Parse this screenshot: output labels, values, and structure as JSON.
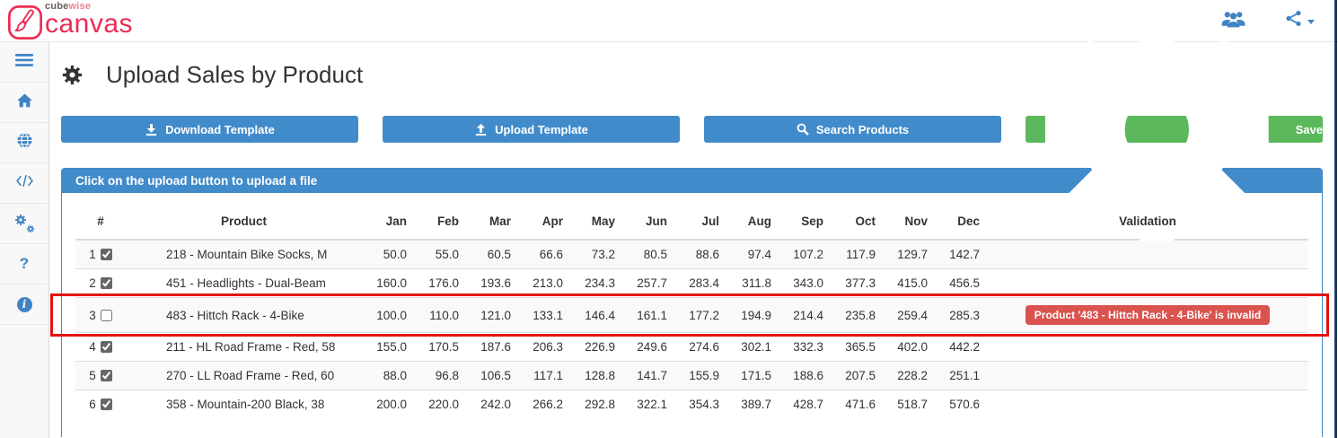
{
  "brand": {
    "cube": "cube",
    "wise": "wise",
    "name": "canvas",
    "icon": "paintbrush-logo-icon",
    "accent_color": "#ed2b55"
  },
  "topbar": {
    "icons": [
      {
        "icon": "users-icon"
      },
      {
        "icon": "share-icon"
      }
    ],
    "icon_color": "#3f83c3"
  },
  "sidebar": {
    "items": [
      {
        "icon": "menu-icon"
      },
      {
        "icon": "home-icon"
      },
      {
        "icon": "globe-icon"
      },
      {
        "icon": "code-icon"
      },
      {
        "icon": "cogs-icon"
      },
      {
        "icon": "help-icon"
      },
      {
        "icon": "info-icon"
      }
    ]
  },
  "header": {
    "title": "Upload Sales by Product",
    "icon": "gear-icon"
  },
  "toolbar": {
    "buttons": [
      {
        "id": "download-template",
        "label": "Download Template",
        "icon": "download-icon",
        "style": "primary"
      },
      {
        "id": "upload-template",
        "label": "Upload Template",
        "icon": "upload-icon",
        "style": "primary"
      },
      {
        "id": "search-products",
        "label": "Search Products",
        "icon": "search-icon",
        "style": "primary"
      },
      {
        "id": "save",
        "label": "Save",
        "icon": "gear-icon",
        "style": "success"
      }
    ],
    "primary_color": "#428bca",
    "success_color": "#5cb85c"
  },
  "panel": {
    "heading": "Click on the upload button to upload a file",
    "accent_color": "#428bca"
  },
  "table": {
    "columns": {
      "num": "#",
      "product": "Product",
      "validation": "Validation"
    },
    "months": [
      "Jan",
      "Feb",
      "Mar",
      "Apr",
      "May",
      "Jun",
      "Jul",
      "Aug",
      "Sep",
      "Oct",
      "Nov",
      "Dec"
    ],
    "rows": [
      {
        "num": "1",
        "checked": true,
        "product": "218 - Mountain Bike Socks, M",
        "values": [
          "50.0",
          "55.0",
          "60.5",
          "66.6",
          "73.2",
          "80.5",
          "88.6",
          "97.4",
          "107.2",
          "117.9",
          "129.7",
          "142.7"
        ],
        "validation": "",
        "highlighted": false
      },
      {
        "num": "2",
        "checked": true,
        "product": "451 - Headlights - Dual-Beam",
        "values": [
          "160.0",
          "176.0",
          "193.6",
          "213.0",
          "234.3",
          "257.7",
          "283.4",
          "311.8",
          "343.0",
          "377.3",
          "415.0",
          "456.5"
        ],
        "validation": "",
        "highlighted": false
      },
      {
        "num": "3",
        "checked": false,
        "product": "483 - Hittch Rack - 4-Bike",
        "values": [
          "100.0",
          "110.0",
          "121.0",
          "133.1",
          "146.4",
          "161.1",
          "177.2",
          "194.9",
          "214.4",
          "235.8",
          "259.4",
          "285.3"
        ],
        "validation": "Product '483 - Hittch Rack - 4-Bike' is invalid",
        "highlighted": true
      },
      {
        "num": "4",
        "checked": true,
        "product": "211 - HL Road Frame - Red, 58",
        "values": [
          "155.0",
          "170.5",
          "187.6",
          "206.3",
          "226.9",
          "249.6",
          "274.6",
          "302.1",
          "332.3",
          "365.5",
          "402.0",
          "442.2"
        ],
        "validation": "",
        "highlighted": false
      },
      {
        "num": "5",
        "checked": true,
        "product": "270 - LL Road Frame - Red, 60",
        "values": [
          "88.0",
          "96.8",
          "106.5",
          "117.1",
          "128.8",
          "141.7",
          "155.9",
          "171.5",
          "188.6",
          "207.5",
          "228.2",
          "251.1"
        ],
        "validation": "",
        "highlighted": false
      },
      {
        "num": "6",
        "checked": true,
        "product": "358 - Mountain-200 Black, 38",
        "values": [
          "200.0",
          "220.0",
          "242.0",
          "266.2",
          "292.8",
          "322.1",
          "354.3",
          "389.7",
          "428.7",
          "471.6",
          "518.7",
          "570.6"
        ],
        "validation": "",
        "highlighted": false
      }
    ]
  },
  "validation_badge_color": "#d9534f",
  "annotation": {
    "color": "#e40f0f"
  }
}
